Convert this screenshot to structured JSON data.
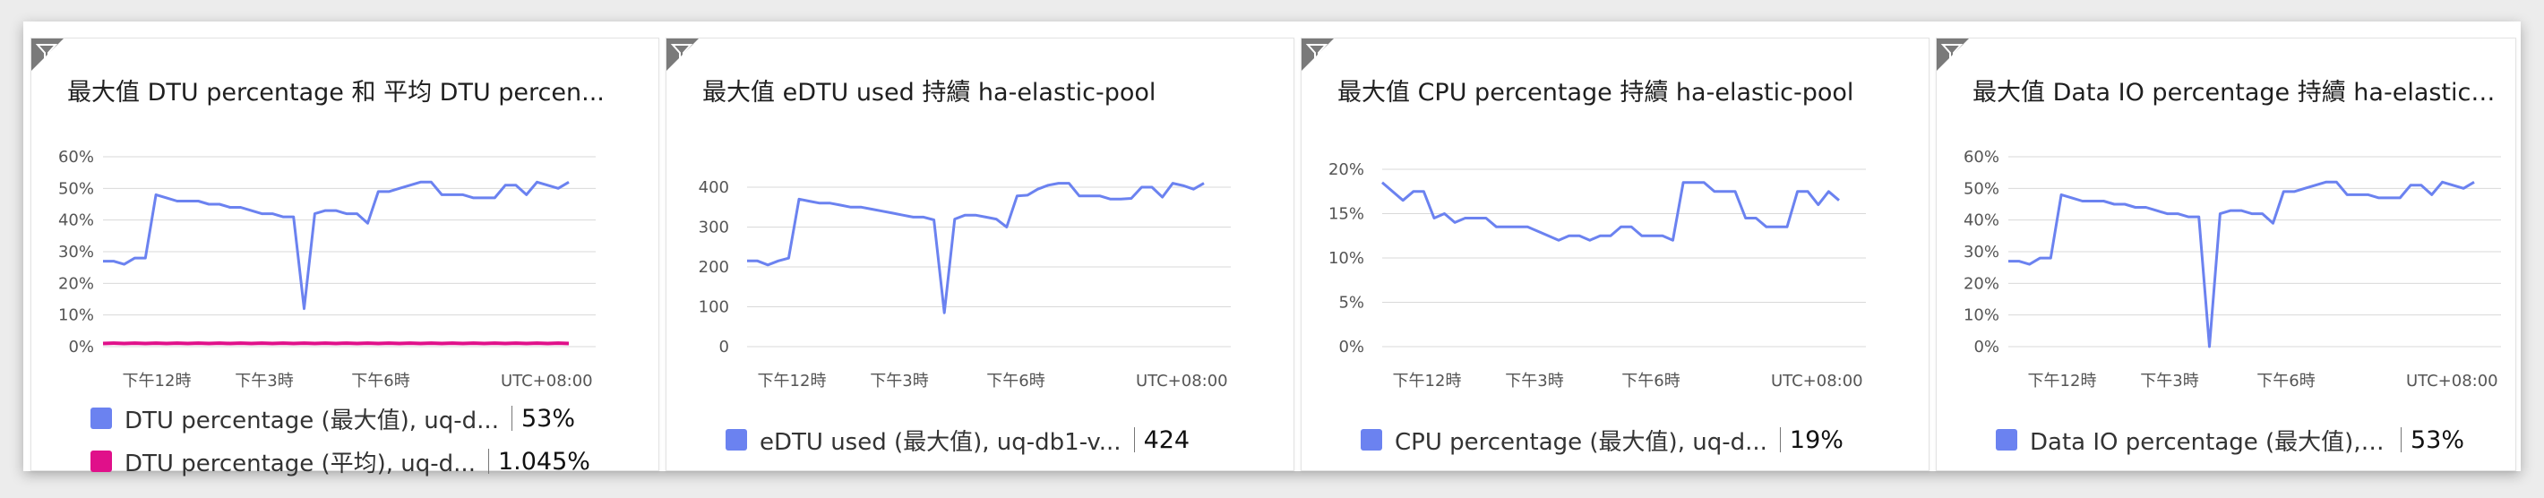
{
  "colors": {
    "primary": "#6b82f0",
    "secondary": "#e0108a",
    "grid": "#d9d9d9"
  },
  "tiles": [
    {
      "title": "最大值 DTU percentage 和 平均 DTU percen...",
      "filter_icon": "filter-icon",
      "y_ticks": [
        "60%",
        "50%",
        "40%",
        "30%",
        "20%",
        "10%",
        "0%"
      ],
      "x_ticks": [
        "下午12時",
        "下午3時",
        "下午6時"
      ],
      "timezone": "UTC+08:00",
      "legend": [
        {
          "label": "DTU percentage (最大值), uq-d...",
          "value": "53%",
          "color": "#6b82f0"
        },
        {
          "label": "DTU percentage (平均), uq-d...",
          "value": "1.045%",
          "color": "#e0108a"
        }
      ]
    },
    {
      "title": "最大值 eDTU used 持續 ha-elastic-pool",
      "filter_icon": "filter-icon",
      "y_ticks": [
        "400",
        "300",
        "200",
        "100",
        "0"
      ],
      "x_ticks": [
        "下午12時",
        "下午3時",
        "下午6時"
      ],
      "timezone": "UTC+08:00",
      "legend": [
        {
          "label": "eDTU used (最大值), uq-db1-v...",
          "value": "424",
          "color": "#6b82f0"
        }
      ]
    },
    {
      "title": "最大值 CPU percentage 持續 ha-elastic-pool",
      "filter_icon": "filter-icon",
      "y_ticks": [
        "20%",
        "15%",
        "10%",
        "5%",
        "0%"
      ],
      "x_ticks": [
        "下午12時",
        "下午3時",
        "下午6時"
      ],
      "timezone": "UTC+08:00",
      "legend": [
        {
          "label": "CPU percentage (最大值), uq-d...",
          "value": "19%",
          "color": "#6b82f0"
        }
      ]
    },
    {
      "title": "最大值 Data IO percentage 持續 ha-elastic-...",
      "filter_icon": "filter-icon",
      "y_ticks": [
        "60%",
        "50%",
        "40%",
        "30%",
        "20%",
        "10%",
        "0%"
      ],
      "x_ticks": [
        "下午12時",
        "下午3時",
        "下午6時"
      ],
      "timezone": "UTC+08:00",
      "legend": [
        {
          "label": "Data IO percentage (最大值), u...",
          "value": "53%",
          "color": "#6b82f0"
        }
      ]
    }
  ],
  "chart_data": [
    {
      "type": "line",
      "ylim": [
        0,
        60
      ],
      "x": [
        0,
        1,
        2,
        3,
        4,
        5,
        6,
        7,
        8,
        9,
        10,
        11,
        12,
        13,
        14,
        15,
        16,
        17,
        18,
        19,
        20,
        21,
        22,
        23,
        24,
        25,
        26,
        27,
        28,
        29,
        30,
        31,
        32,
        33,
        34,
        35,
        36,
        37,
        38,
        39,
        40,
        41,
        42,
        43,
        44
      ],
      "series": [
        {
          "values": [
            27,
            27,
            26,
            28,
            28,
            48,
            47,
            46,
            46,
            46,
            45,
            45,
            44,
            44,
            43,
            42,
            42,
            41,
            41,
            12,
            42,
            43,
            43,
            42,
            42,
            39,
            49,
            49,
            50,
            51,
            52,
            52,
            48,
            48,
            48,
            47,
            47,
            47,
            51,
            51,
            48,
            52,
            51,
            50,
            52
          ]
        },
        {
          "values": [
            1.0,
            1.1,
            1.0,
            1.1,
            1.0,
            1.1,
            1.0,
            1.1,
            1.0,
            1.1,
            1.0,
            1.1,
            1.0,
            1.1,
            1.0,
            1.1,
            1.0,
            1.1,
            1.0,
            1.1,
            1.0,
            1.1,
            1.0,
            1.1,
            1.0,
            1.1,
            1.0,
            1.1,
            1.0,
            1.1,
            1.0,
            1.1,
            1.0,
            1.1,
            1.0,
            1.1,
            1.0,
            1.1,
            1.0,
            1.1,
            1.0,
            1.1,
            1.0,
            1.1,
            1.0
          ]
        }
      ]
    },
    {
      "type": "line",
      "ylim": [
        0,
        400
      ],
      "x": [
        0,
        1,
        2,
        3,
        4,
        5,
        6,
        7,
        8,
        9,
        10,
        11,
        12,
        13,
        14,
        15,
        16,
        17,
        18,
        19,
        20,
        21,
        22,
        23,
        24,
        25,
        26,
        27,
        28,
        29,
        30,
        31,
        32,
        33,
        34,
        35,
        36,
        37,
        38,
        39,
        40,
        41,
        42,
        43,
        44
      ],
      "series": [
        {
          "values": [
            215,
            215,
            205,
            215,
            222,
            370,
            365,
            360,
            360,
            355,
            350,
            350,
            345,
            340,
            335,
            330,
            325,
            325,
            318,
            85,
            320,
            330,
            330,
            325,
            320,
            300,
            378,
            380,
            395,
            405,
            410,
            410,
            378,
            378,
            378,
            370,
            370,
            372,
            400,
            400,
            375,
            410,
            404,
            395,
            410
          ]
        }
      ]
    },
    {
      "type": "line",
      "ylim": [
        0,
        20
      ],
      "x": [
        0,
        1,
        2,
        3,
        4,
        5,
        6,
        7,
        8,
        9,
        10,
        11,
        12,
        13,
        14,
        15,
        16,
        17,
        18,
        19,
        20,
        21,
        22,
        23,
        24,
        25,
        26,
        27,
        28,
        29,
        30,
        31,
        32,
        33,
        34,
        35,
        36,
        37,
        38,
        39,
        40,
        41,
        42,
        43,
        44
      ],
      "series": [
        {
          "values": [
            18.5,
            17.5,
            16.5,
            17.5,
            17.5,
            14.5,
            15,
            14,
            14.5,
            14.5,
            14.5,
            13.5,
            13.5,
            13.5,
            13.5,
            13,
            12.5,
            12,
            12.5,
            12.5,
            12,
            12.5,
            12.5,
            13.5,
            13.5,
            12.5,
            12.5,
            12.5,
            12,
            18.5,
            18.5,
            18.5,
            17.5,
            17.5,
            17.5,
            14.5,
            14.5,
            13.5,
            13.5,
            13.5,
            17.5,
            17.5,
            16,
            17.5,
            16.5
          ]
        }
      ]
    },
    {
      "type": "line",
      "ylim": [
        0,
        60
      ],
      "x": [
        0,
        1,
        2,
        3,
        4,
        5,
        6,
        7,
        8,
        9,
        10,
        11,
        12,
        13,
        14,
        15,
        16,
        17,
        18,
        19,
        20,
        21,
        22,
        23,
        24,
        25,
        26,
        27,
        28,
        29,
        30,
        31,
        32,
        33,
        34,
        35,
        36,
        37,
        38,
        39,
        40,
        41,
        42,
        43,
        44
      ],
      "series": [
        {
          "values": [
            27,
            27,
            26,
            28,
            28,
            48,
            47,
            46,
            46,
            46,
            45,
            45,
            44,
            44,
            43,
            42,
            42,
            41,
            41,
            0,
            42,
            43,
            43,
            42,
            42,
            39,
            49,
            49,
            50,
            51,
            52,
            52,
            48,
            48,
            48,
            47,
            47,
            47,
            51,
            51,
            48,
            52,
            51,
            50,
            52
          ]
        }
      ]
    }
  ]
}
